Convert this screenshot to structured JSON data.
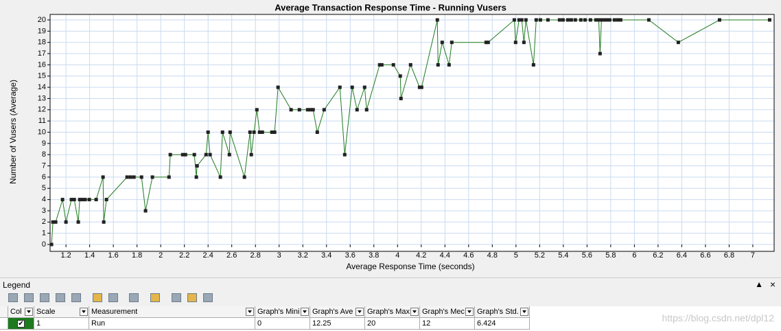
{
  "chart_data": {
    "type": "line",
    "title": "Average Transaction Response Time - Running Vusers",
    "x_label": "Average Response Time (seconds)",
    "y_label": "Number of Vusers (Average)",
    "xlim": [
      1.066,
      7.18
    ],
    "xticks": [
      1.2,
      1.4,
      1.6,
      1.8,
      2,
      2.2,
      2.4,
      2.6,
      2.8,
      3,
      3.2,
      3.4,
      3.6,
      3.8,
      4,
      4.2,
      4.4,
      4.6,
      4.8,
      5,
      5.2,
      5.4,
      5.6,
      5.8,
      6,
      6.2,
      6.4,
      6.6,
      6.8,
      7
    ],
    "ylim": [
      0,
      20
    ],
    "yticks": [
      0,
      1,
      2,
      3,
      4,
      5,
      6,
      7,
      8,
      9,
      10,
      11,
      12,
      13,
      14,
      15,
      16,
      17,
      18,
      19,
      20
    ],
    "grid": true,
    "x": [
      1.078,
      1.09,
      1.113,
      1.171,
      1.2,
      1.246,
      1.27,
      1.304,
      1.316,
      1.339,
      1.362,
      1.397,
      1.455,
      1.513,
      1.519,
      1.542,
      1.716,
      1.745,
      1.774,
      1.838,
      1.872,
      1.93,
      2.07,
      2.081,
      2.186,
      2.209,
      2.284,
      2.301,
      2.307,
      2.383,
      2.4,
      2.417,
      2.504,
      2.522,
      2.58,
      2.586,
      2.707,
      2.754,
      2.765,
      2.788,
      2.812,
      2.835,
      2.858,
      2.939,
      2.962,
      2.991,
      3.101,
      3.171,
      3.241,
      3.264,
      3.287,
      3.322,
      3.38,
      3.513,
      3.554,
      3.617,
      3.658,
      3.722,
      3.739,
      3.849,
      3.867,
      3.965,
      4.023,
      4.029,
      4.11,
      4.186,
      4.203,
      4.336,
      4.342,
      4.377,
      4.435,
      4.458,
      4.748,
      4.765,
      4.986,
      4.997,
      5.026,
      5.049,
      5.067,
      5.084,
      5.148,
      5.171,
      5.206,
      5.27,
      5.368,
      5.397,
      5.438,
      5.467,
      5.501,
      5.548,
      5.583,
      5.629,
      5.675,
      5.699,
      5.71,
      5.722,
      5.745,
      5.768,
      5.791,
      5.832,
      5.861,
      5.884,
      6.122,
      6.371,
      6.719,
      7.142
    ],
    "series": [
      {
        "name": "Run",
        "color": "#1e7a1e",
        "values": [
          0,
          2,
          2,
          4,
          2,
          4,
          4,
          2,
          4,
          4,
          4,
          4,
          4,
          6,
          2,
          4,
          6,
          6,
          6,
          6,
          3,
          6,
          6,
          8,
          8,
          8,
          8,
          6,
          7,
          8,
          10,
          8,
          6,
          10,
          8,
          10,
          6,
          10,
          8,
          10,
          12,
          10,
          10,
          10,
          10,
          14,
          12,
          12,
          12,
          12,
          12,
          10,
          12,
          14,
          8,
          14,
          12,
          14,
          12,
          16,
          16,
          16,
          15,
          13,
          16,
          14,
          14,
          20,
          16,
          18,
          16,
          18,
          18,
          18,
          20,
          18,
          20,
          20,
          18,
          20,
          16,
          20,
          20,
          20,
          20,
          20,
          20,
          20,
          20,
          20,
          20,
          20,
          20,
          20,
          17,
          20,
          20,
          20,
          20,
          20,
          20,
          20,
          20,
          18,
          20,
          20
        ]
      }
    ]
  },
  "legend_panel": {
    "title": "Legend",
    "columns": [
      "Col",
      "Scale",
      "Measurement",
      "Graph's Mini",
      "Graph's Ave",
      "Graph's Max",
      "Graph's Mec",
      "Graph's Std."
    ],
    "rows": [
      [
        "1",
        "Run",
        "0",
        "12.25",
        "20",
        "12",
        "6.424"
      ]
    ]
  },
  "watermark": "https://blog.csdn.net/dpl12"
}
